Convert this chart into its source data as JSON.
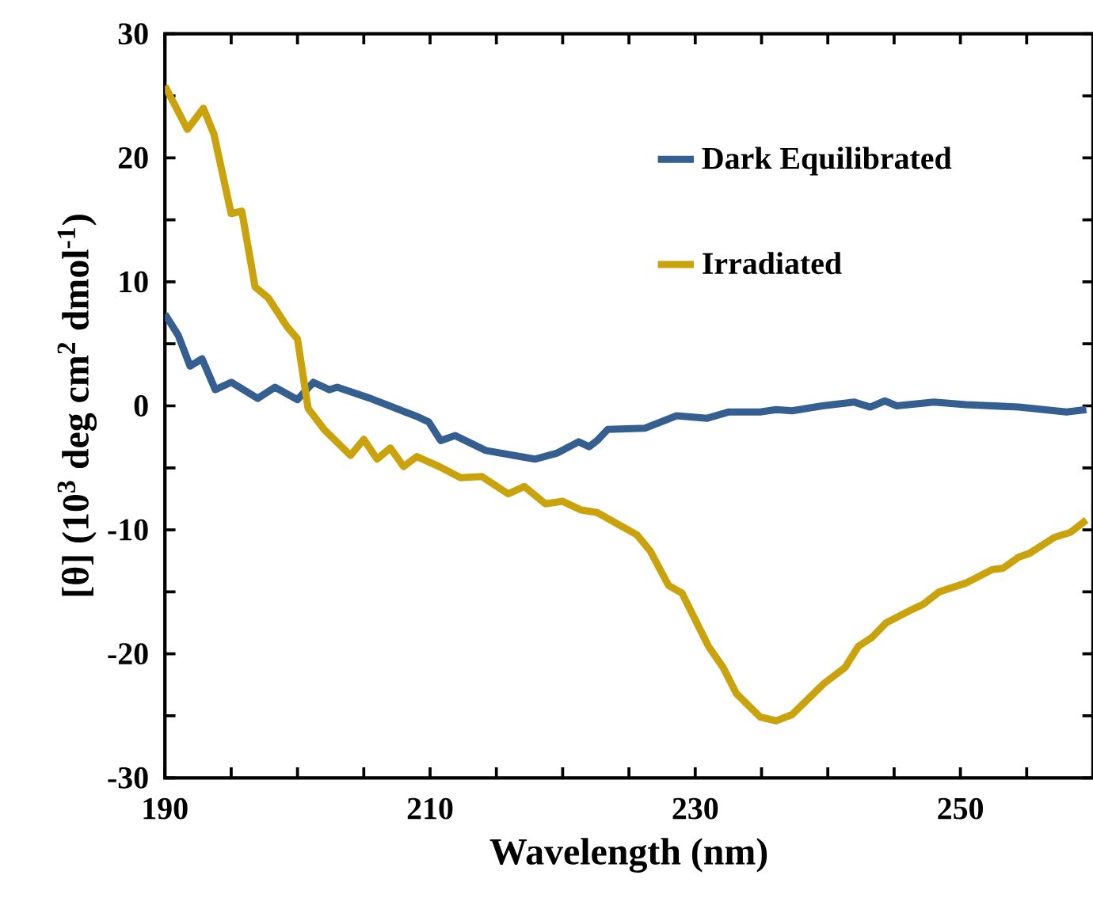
{
  "chart_data": {
    "type": "line",
    "xlabel": "Wavelength (nm)",
    "ylabel": "[θ] (10$^{3}$ deg cm$^{2}$ dmol$^{-1}$)",
    "xlim": [
      190,
      260
    ],
    "xticks": [
      190,
      {
        "value": 195,
        "label": null
      },
      {
        "value": 200,
        "label": null
      },
      {
        "value": 205,
        "label": null
      },
      210,
      {
        "value": 215,
        "label": null
      },
      {
        "value": 220,
        "label": null
      },
      {
        "value": 225,
        "label": null
      },
      230,
      {
        "value": 235,
        "label": null
      },
      {
        "value": 240,
        "label": null
      },
      {
        "value": 245,
        "label": null
      },
      250,
      {
        "value": 255,
        "label": null
      },
      {
        "value": 260,
        "label": null
      }
    ],
    "ylim": [
      -30,
      30
    ],
    "yticks": [
      -30,
      {
        "value": -25,
        "label": null
      },
      -20,
      {
        "value": -15,
        "label": null
      },
      -10,
      {
        "value": -5,
        "label": null
      },
      0,
      {
        "value": 5,
        "label": null
      },
      10,
      {
        "value": 15,
        "label": null
      },
      20,
      {
        "value": 25,
        "label": null
      },
      30
    ],
    "legend": "top right",
    "grid": false,
    "marker": "none",
    "line_style": "solid",
    "series": [
      {
        "name": "Dark Equilibrated",
        "color": "#355f91",
        "x": [
          190,
          191,
          191.9,
          192.8,
          193.8,
          195,
          197,
          198.3,
          200,
          201.2,
          202.4,
          203,
          205.5,
          209.1,
          209.9,
          210.8,
          211.9,
          214.2,
          217.9,
          219.6,
          221.2,
          222,
          222.6,
          223.4,
          226.2,
          228.6,
          230.9,
          232.5,
          234.9,
          236.1,
          237.3,
          239.6,
          242,
          243.2,
          244.3,
          245.2,
          248,
          250.4,
          254.4,
          258,
          259.5
        ],
        "values": [
          7.4,
          5.7,
          3.2,
          3.8,
          1.3,
          1.9,
          0.6,
          1.5,
          0.5,
          1.9,
          1.3,
          1.5,
          0.6,
          -0.9,
          -1.3,
          -2.8,
          -2.4,
          -3.6,
          -4.3,
          -3.8,
          -2.9,
          -3.3,
          -2.8,
          -1.9,
          -1.8,
          -0.8,
          -1.0,
          -0.5,
          -0.5,
          -0.3,
          -0.4,
          0,
          0.3,
          -0.1,
          0.4,
          0,
          0.3,
          0.1,
          -0.1,
          -0.5,
          -0.3
        ]
      },
      {
        "name": "Irradiated",
        "color": "#c9a20c",
        "x": [
          190,
          191.7,
          192.9,
          193.7,
          195,
          195.8,
          196.8,
          197.8,
          199.2,
          200,
          200.8,
          202,
          204,
          205,
          206,
          207,
          208,
          209,
          210.7,
          212.3,
          213.9,
          215.9,
          217.1,
          218.7,
          220,
          221.4,
          222.6,
          225.6,
          226.6,
          228,
          229,
          231,
          232.1,
          233.1,
          234.9,
          236.1,
          237.3,
          239.7,
          241.3,
          242.3,
          243.3,
          244.4,
          246.4,
          247.2,
          248.4,
          250.4,
          252.4,
          253.2,
          254.4,
          255.2,
          257.1,
          258.3,
          259.5
        ],
        "values": [
          25.8,
          22.3,
          24.0,
          21.9,
          15.5,
          15.7,
          9.6,
          8.7,
          6.4,
          5.4,
          -0.2,
          -1.9,
          -4.0,
          -2.7,
          -4.3,
          -3.4,
          -4.9,
          -4.1,
          -4.9,
          -5.8,
          -5.7,
          -7.1,
          -6.5,
          -7.9,
          -7.7,
          -8.4,
          -8.6,
          -10.4,
          -11.7,
          -14.5,
          -15.1,
          -19.4,
          -21.1,
          -23.2,
          -25.1,
          -25.4,
          -24.9,
          -22.4,
          -21.1,
          -19.4,
          -18.7,
          -17.5,
          -16.4,
          -16.0,
          -15.0,
          -14.3,
          -13.2,
          -13.1,
          -12.2,
          -11.9,
          -10.6,
          -10.2,
          -9.2
        ]
      }
    ]
  }
}
